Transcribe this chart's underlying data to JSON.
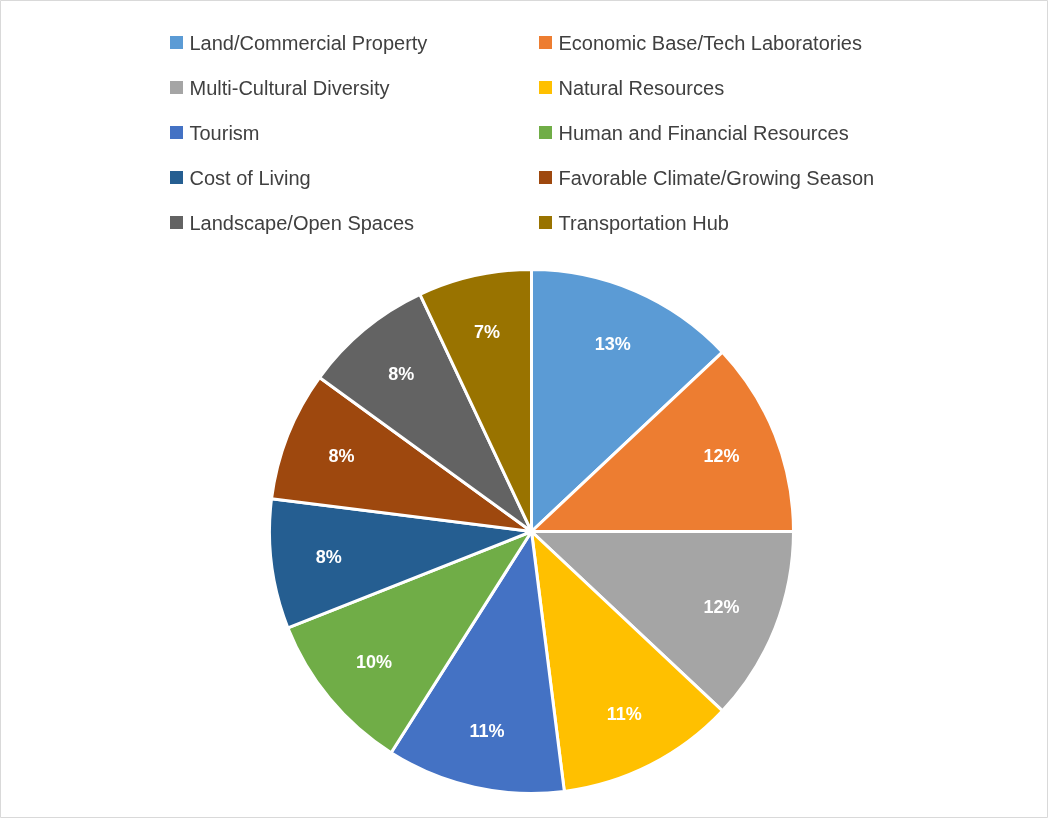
{
  "chart_data": {
    "type": "pie",
    "categories": [
      "Land/Commercial Property",
      "Economic Base/Tech Laboratories",
      "Multi-Cultural Diversity",
      "Natural Resources",
      "Tourism",
      "Human and Financial Resources",
      "Cost of Living",
      "Favorable Climate/Growing Season",
      "Landscape/Open Spaces",
      "Transportation Hub"
    ],
    "values": [
      13,
      12,
      12,
      11,
      11,
      10,
      8,
      8,
      8,
      7
    ],
    "value_labels": [
      "13%",
      "12%",
      "12%",
      "11%",
      "11%",
      "10%",
      "8%",
      "8%",
      "8%",
      "7%"
    ],
    "colors": [
      "#5b9bd5",
      "#ed7d31",
      "#a5a5a5",
      "#ffc000",
      "#4472c4",
      "#70ad47",
      "#255e91",
      "#9e480e",
      "#636363",
      "#997300"
    ],
    "legend": "top"
  }
}
